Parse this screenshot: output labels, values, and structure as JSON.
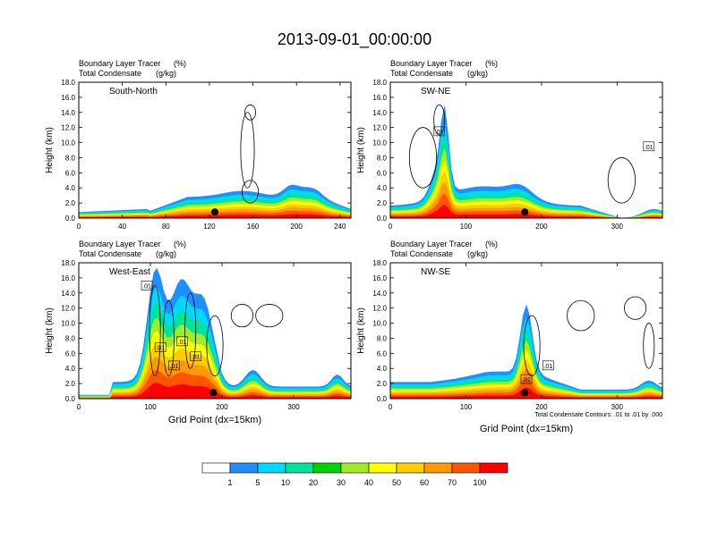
{
  "title": "2013-09-01_00:00:00",
  "panel_header": {
    "line1_label": "Boundary Layer Tracer",
    "line1_unit": "(%)",
    "line2_label": "Total Condensate",
    "line2_unit": "(g/kg)"
  },
  "y_axis_label": "Height (km)",
  "x_axis_label": "Grid Point (dx=15km)",
  "contour_note": "Total Condensate Contours: .01 to .01 by .000",
  "colorbar": {
    "colors": [
      "#ffffff",
      "#1f8fff",
      "#00d8ff",
      "#00e39a",
      "#00d400",
      "#a0ec28",
      "#ffff00",
      "#ffcc00",
      "#ff9900",
      "#ff5500",
      "#ff0000"
    ],
    "labels": [
      "1",
      "5",
      "10",
      "20",
      "30",
      "40",
      "50",
      "60",
      "70",
      "100"
    ]
  },
  "chart_data": [
    {
      "type": "heatmap",
      "name": "South-North",
      "ylim": [
        0,
        18
      ],
      "yticks": [
        "0.0",
        "2.0",
        "4.0",
        "6.0",
        "8.0",
        "10.0",
        "12.0",
        "14.0",
        "16.0",
        "18.0"
      ],
      "xlim": [
        0,
        250
      ],
      "xticks": [
        "0",
        "40",
        "80",
        "120",
        "160",
        "200",
        "240"
      ],
      "marker_x": 125
    },
    {
      "type": "heatmap",
      "name": "SW-NE",
      "ylim": [
        0,
        18
      ],
      "yticks": [
        "0.0",
        "2.0",
        "4.0",
        "6.0",
        "8.0",
        "10.0",
        "12.0",
        "14.0",
        "16.0",
        "18.0"
      ],
      "xlim": [
        0,
        360
      ],
      "xticks": [
        "0",
        "100",
        "200",
        "300"
      ],
      "marker_x": 178,
      "contour_labels": [
        ".01",
        ".01"
      ]
    },
    {
      "type": "heatmap",
      "name": "West-East",
      "ylim": [
        0,
        18
      ],
      "yticks": [
        "0.0",
        "2.0",
        "4.0",
        "6.0",
        "8.0",
        "10.0",
        "12.0",
        "14.0",
        "16.0",
        "18.0"
      ],
      "xlim": [
        0,
        380
      ],
      "xticks": [
        "0",
        "100",
        "200",
        "300"
      ],
      "marker_x": 188,
      "contour_labels": [
        ".01",
        ".01",
        ".01",
        ".01",
        ".01"
      ]
    },
    {
      "type": "heatmap",
      "name": "NW-SE",
      "ylim": [
        0,
        18
      ],
      "yticks": [
        "0.0",
        "2.0",
        "4.0",
        "6.0",
        "8.0",
        "10.0",
        "12.0",
        "14.0",
        "16.0",
        "18.0"
      ],
      "xlim": [
        0,
        360
      ],
      "xticks": [
        "0",
        "100",
        "200",
        "300"
      ],
      "marker_x": 178,
      "contour_labels": [
        ".01",
        ".01"
      ]
    }
  ]
}
